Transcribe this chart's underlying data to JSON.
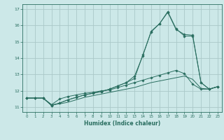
{
  "bg_color": "#cce8e8",
  "grid_color": "#aac8c8",
  "line_color": "#2a6e60",
  "xlabel": "Humidex (Indice chaleur)",
  "xlim": [
    -0.5,
    23.5
  ],
  "ylim": [
    10.7,
    17.3
  ],
  "yticks": [
    11,
    12,
    13,
    14,
    15,
    16,
    17
  ],
  "xticks": [
    0,
    1,
    2,
    3,
    4,
    5,
    6,
    7,
    8,
    9,
    10,
    11,
    12,
    13,
    14,
    15,
    16,
    17,
    18,
    19,
    20,
    21,
    22,
    23
  ],
  "series": [
    {
      "x": [
        0,
        1,
        2,
        3,
        4,
        5,
        6,
        7,
        8,
        9,
        10,
        11,
        12,
        13,
        14,
        15,
        16,
        17,
        18,
        19,
        20,
        21,
        22,
        23
      ],
      "y": [
        11.55,
        11.55,
        11.55,
        11.15,
        11.2,
        11.3,
        11.45,
        11.6,
        11.7,
        11.8,
        11.9,
        12.0,
        12.1,
        12.2,
        12.35,
        12.5,
        12.6,
        12.7,
        12.8,
        12.9,
        12.7,
        12.15,
        12.1,
        12.25
      ],
      "marker": false
    },
    {
      "x": [
        0,
        1,
        2,
        3,
        4,
        5,
        6,
        7,
        8,
        9,
        10,
        11,
        12,
        13,
        14,
        15,
        16,
        17,
        18,
        19,
        20,
        21,
        22,
        23
      ],
      "y": [
        11.55,
        11.55,
        11.55,
        11.15,
        11.5,
        11.65,
        11.75,
        11.85,
        11.9,
        12.0,
        12.05,
        12.2,
        12.35,
        12.5,
        12.65,
        12.8,
        12.95,
        13.1,
        13.25,
        13.05,
        12.4,
        12.1,
        12.1,
        12.25
      ],
      "marker": true
    },
    {
      "x": [
        0,
        1,
        2,
        3,
        4,
        5,
        6,
        7,
        8,
        9,
        10,
        11,
        12,
        13,
        14,
        15,
        16,
        17,
        18,
        19,
        20,
        21,
        22,
        23
      ],
      "y": [
        11.55,
        11.55,
        11.55,
        11.1,
        11.25,
        11.45,
        11.6,
        11.75,
        11.85,
        11.95,
        12.1,
        12.3,
        12.5,
        12.75,
        14.2,
        15.6,
        16.1,
        16.8,
        15.75,
        15.45,
        15.4,
        12.5,
        12.1,
        12.25
      ],
      "marker": true
    },
    {
      "x": [
        0,
        1,
        2,
        3,
        4,
        5,
        6,
        7,
        8,
        9,
        10,
        11,
        12,
        13,
        14,
        15,
        16,
        17,
        18,
        19,
        20,
        21,
        22,
        23
      ],
      "y": [
        11.55,
        11.55,
        11.55,
        11.1,
        11.25,
        11.45,
        11.6,
        11.75,
        11.85,
        11.95,
        12.1,
        12.3,
        12.5,
        12.9,
        14.15,
        15.65,
        16.1,
        16.85,
        15.8,
        15.35,
        15.35,
        12.5,
        12.1,
        12.25
      ],
      "marker": true
    }
  ]
}
